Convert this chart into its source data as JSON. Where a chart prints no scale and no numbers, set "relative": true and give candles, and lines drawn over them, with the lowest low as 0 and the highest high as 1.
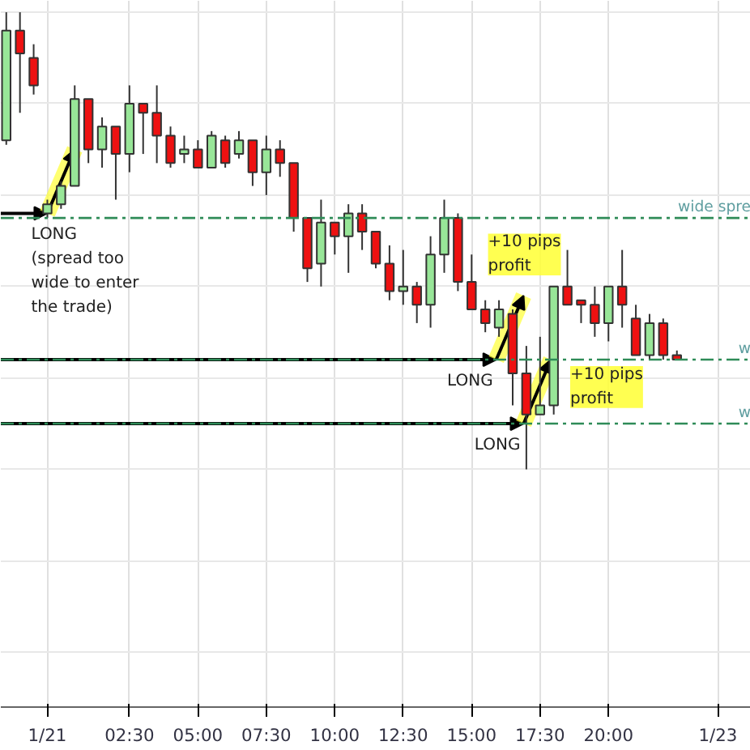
{
  "chart_data": {
    "type": "candlestick",
    "relative": true,
    "x": [
      -2,
      -1.5,
      -1,
      -0.5,
      0,
      0.5,
      1,
      1.5,
      2,
      2.5,
      3,
      3.5,
      4,
      4.5,
      5,
      5.5,
      6,
      6.5,
      7,
      7.5,
      8,
      8.5,
      9,
      9.5,
      10,
      10.5,
      11,
      11.5,
      12,
      12.5,
      13,
      13.5,
      14,
      14.5,
      15,
      15.5,
      16,
      16.5,
      17,
      17.5,
      18,
      18.5,
      19,
      19.5,
      20,
      20.5,
      21,
      21.5,
      22,
      22.5
    ],
    "ohlc": [
      [
        0.72,
        1.0,
        0.71,
        0.96
      ],
      [
        0.96,
        1.0,
        0.78,
        0.91
      ],
      [
        0.9,
        0.93,
        0.82,
        0.84
      ],
      [
        0.56,
        0.59,
        0.55,
        0.58
      ],
      [
        0.58,
        0.63,
        0.57,
        0.62
      ],
      [
        0.62,
        0.84,
        0.62,
        0.81
      ],
      [
        0.81,
        0.81,
        0.67,
        0.7
      ],
      [
        0.7,
        0.77,
        0.66,
        0.75
      ],
      [
        0.75,
        0.75,
        0.59,
        0.69
      ],
      [
        0.69,
        0.84,
        0.65,
        0.8
      ],
      [
        0.8,
        0.8,
        0.69,
        0.78
      ],
      [
        0.78,
        0.84,
        0.67,
        0.73
      ],
      [
        0.73,
        0.75,
        0.66,
        0.67
      ],
      [
        0.69,
        0.73,
        0.67,
        0.7
      ],
      [
        0.7,
        0.72,
        0.66,
        0.66
      ],
      [
        0.66,
        0.74,
        0.66,
        0.73
      ],
      [
        0.72,
        0.73,
        0.66,
        0.67
      ],
      [
        0.69,
        0.74,
        0.68,
        0.72
      ],
      [
        0.72,
        0.72,
        0.62,
        0.65
      ],
      [
        0.65,
        0.73,
        0.6,
        0.7
      ],
      [
        0.7,
        0.72,
        0.64,
        0.67
      ],
      [
        0.67,
        0.67,
        0.52,
        0.55
      ],
      [
        0.55,
        0.55,
        0.41,
        0.44
      ],
      [
        0.45,
        0.59,
        0.4,
        0.54
      ],
      [
        0.54,
        0.54,
        0.47,
        0.51
      ],
      [
        0.51,
        0.58,
        0.43,
        0.56
      ],
      [
        0.56,
        0.58,
        0.48,
        0.52
      ],
      [
        0.52,
        0.52,
        0.44,
        0.45
      ],
      [
        0.45,
        0.49,
        0.37,
        0.39
      ],
      [
        0.39,
        0.48,
        0.36,
        0.4
      ],
      [
        0.4,
        0.41,
        0.32,
        0.36
      ],
      [
        0.36,
        0.51,
        0.31,
        0.47
      ],
      [
        0.47,
        0.59,
        0.43,
        0.55
      ],
      [
        0.55,
        0.56,
        0.39,
        0.41
      ],
      [
        0.41,
        0.47,
        0.35,
        0.35
      ],
      [
        0.35,
        0.37,
        0.3,
        0.32
      ],
      [
        0.31,
        0.37,
        0.29,
        0.35
      ],
      [
        0.34,
        0.35,
        0.14,
        0.21
      ],
      [
        0.21,
        0.27,
        0.0,
        0.12
      ],
      [
        0.12,
        0.29,
        0.12,
        0.14
      ],
      [
        0.14,
        0.4,
        0.12,
        0.4
      ],
      [
        0.4,
        0.48,
        0.36,
        0.36
      ],
      [
        0.37,
        0.37,
        0.32,
        0.36
      ],
      [
        0.36,
        0.4,
        0.29,
        0.32
      ],
      [
        0.32,
        0.4,
        0.28,
        0.4
      ],
      [
        0.4,
        0.48,
        0.31,
        0.36
      ],
      [
        0.33,
        0.36,
        0.25,
        0.25
      ],
      [
        0.25,
        0.34,
        0.24,
        0.32
      ],
      [
        0.32,
        0.33,
        0.24,
        0.25
      ],
      [
        0.25,
        0.26,
        0.24,
        0.24
      ]
    ],
    "xlim": [
      -2.2,
      25.2
    ],
    "xticks": [
      {
        "value": -0.5,
        "label": "1/21"
      },
      {
        "value": 2.5,
        "label": "02:30"
      },
      {
        "value": 5,
        "label": "05:00"
      },
      {
        "value": 7.5,
        "label": "07:30"
      },
      {
        "value": 10,
        "label": "10:00"
      },
      {
        "value": 12.5,
        "label": "12:30"
      },
      {
        "value": 15,
        "label": "15:00"
      },
      {
        "value": 17.5,
        "label": "17:30"
      },
      {
        "value": 20,
        "label": "20:00"
      },
      {
        "value": 24,
        "label": "1/23"
      }
    ],
    "ref_lines": [
      {
        "axis": "y",
        "value": 0.55,
        "label": "wide spre",
        "color": "#2e8b57",
        "line_style": "dashed"
      },
      {
        "axis": "y",
        "value": 0.24,
        "label": "w",
        "color": "#2e8b57",
        "line_style": "dashed"
      },
      {
        "axis": "y",
        "value": 0.1,
        "label": "w",
        "color": "#2e8b57",
        "line_style": "dashed"
      }
    ],
    "annotations": [
      {
        "text": "LONG\n(spread too\nwide to enter\nthe trade)",
        "x": -0.5,
        "y": 0.56
      },
      {
        "text": "LONG",
        "x": 15.9,
        "y": 0.24
      },
      "+10 pips\nprofit",
      {
        "text": "LONG",
        "x": 16.9,
        "y": 0.1
      },
      "+10 pips\nprofit"
    ],
    "grid": true
  }
}
